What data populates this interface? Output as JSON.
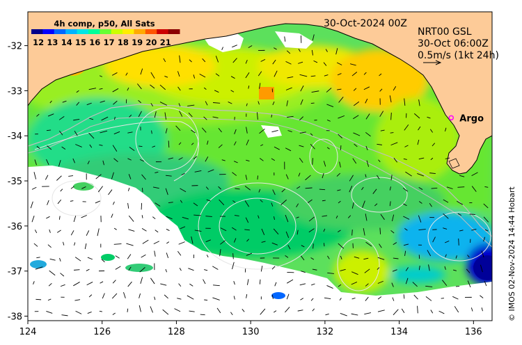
{
  "legend": {
    "title": "4h comp, p50, All Sats",
    "tick_labels": [
      "12",
      "13",
      "14",
      "15",
      "16",
      "17",
      "18",
      "19",
      "20",
      "21"
    ],
    "range": [
      11.5,
      22
    ],
    "colors": [
      "#00008b",
      "#0000ff",
      "#0066ff",
      "#00b3ff",
      "#00e5e5",
      "#00ff99",
      "#66ff33",
      "#ccff00",
      "#ffee00",
      "#ffaa00",
      "#ff5500",
      "#cc0000",
      "#8b0000"
    ]
  },
  "timestamp": "30-Oct-2024 00Z",
  "current_info": {
    "line1": "NRT00 GSL",
    "line2": "30-Oct 06:00Z",
    "line3": "0.5m/s (1kt 24h)"
  },
  "argo": {
    "label": "Argo",
    "lon": 135.4,
    "lat": -33.6,
    "color": "#ff00ff"
  },
  "copyright": "© IMOS 02-Nov-2024 14:44 Hobart",
  "axes": {
    "x_ticks": [
      "124",
      "126",
      "128",
      "130",
      "132",
      "134",
      "136"
    ],
    "x_values": [
      124,
      126,
      128,
      130,
      132,
      134,
      136
    ],
    "y_ticks": [
      "-32",
      "-33",
      "-34",
      "-35",
      "-36",
      "-37",
      "-38"
    ],
    "y_values": [
      -32,
      -33,
      -34,
      -35,
      -36,
      -37,
      -38
    ],
    "lon_range": [
      124,
      136.5
    ],
    "lat_range": [
      -31.25,
      -38.1
    ]
  },
  "colors": {
    "land": "#fdcb98",
    "cloud": "#ffffff",
    "contour": "#e6e6e6",
    "shelf_line": "#bfbfbf"
  }
}
